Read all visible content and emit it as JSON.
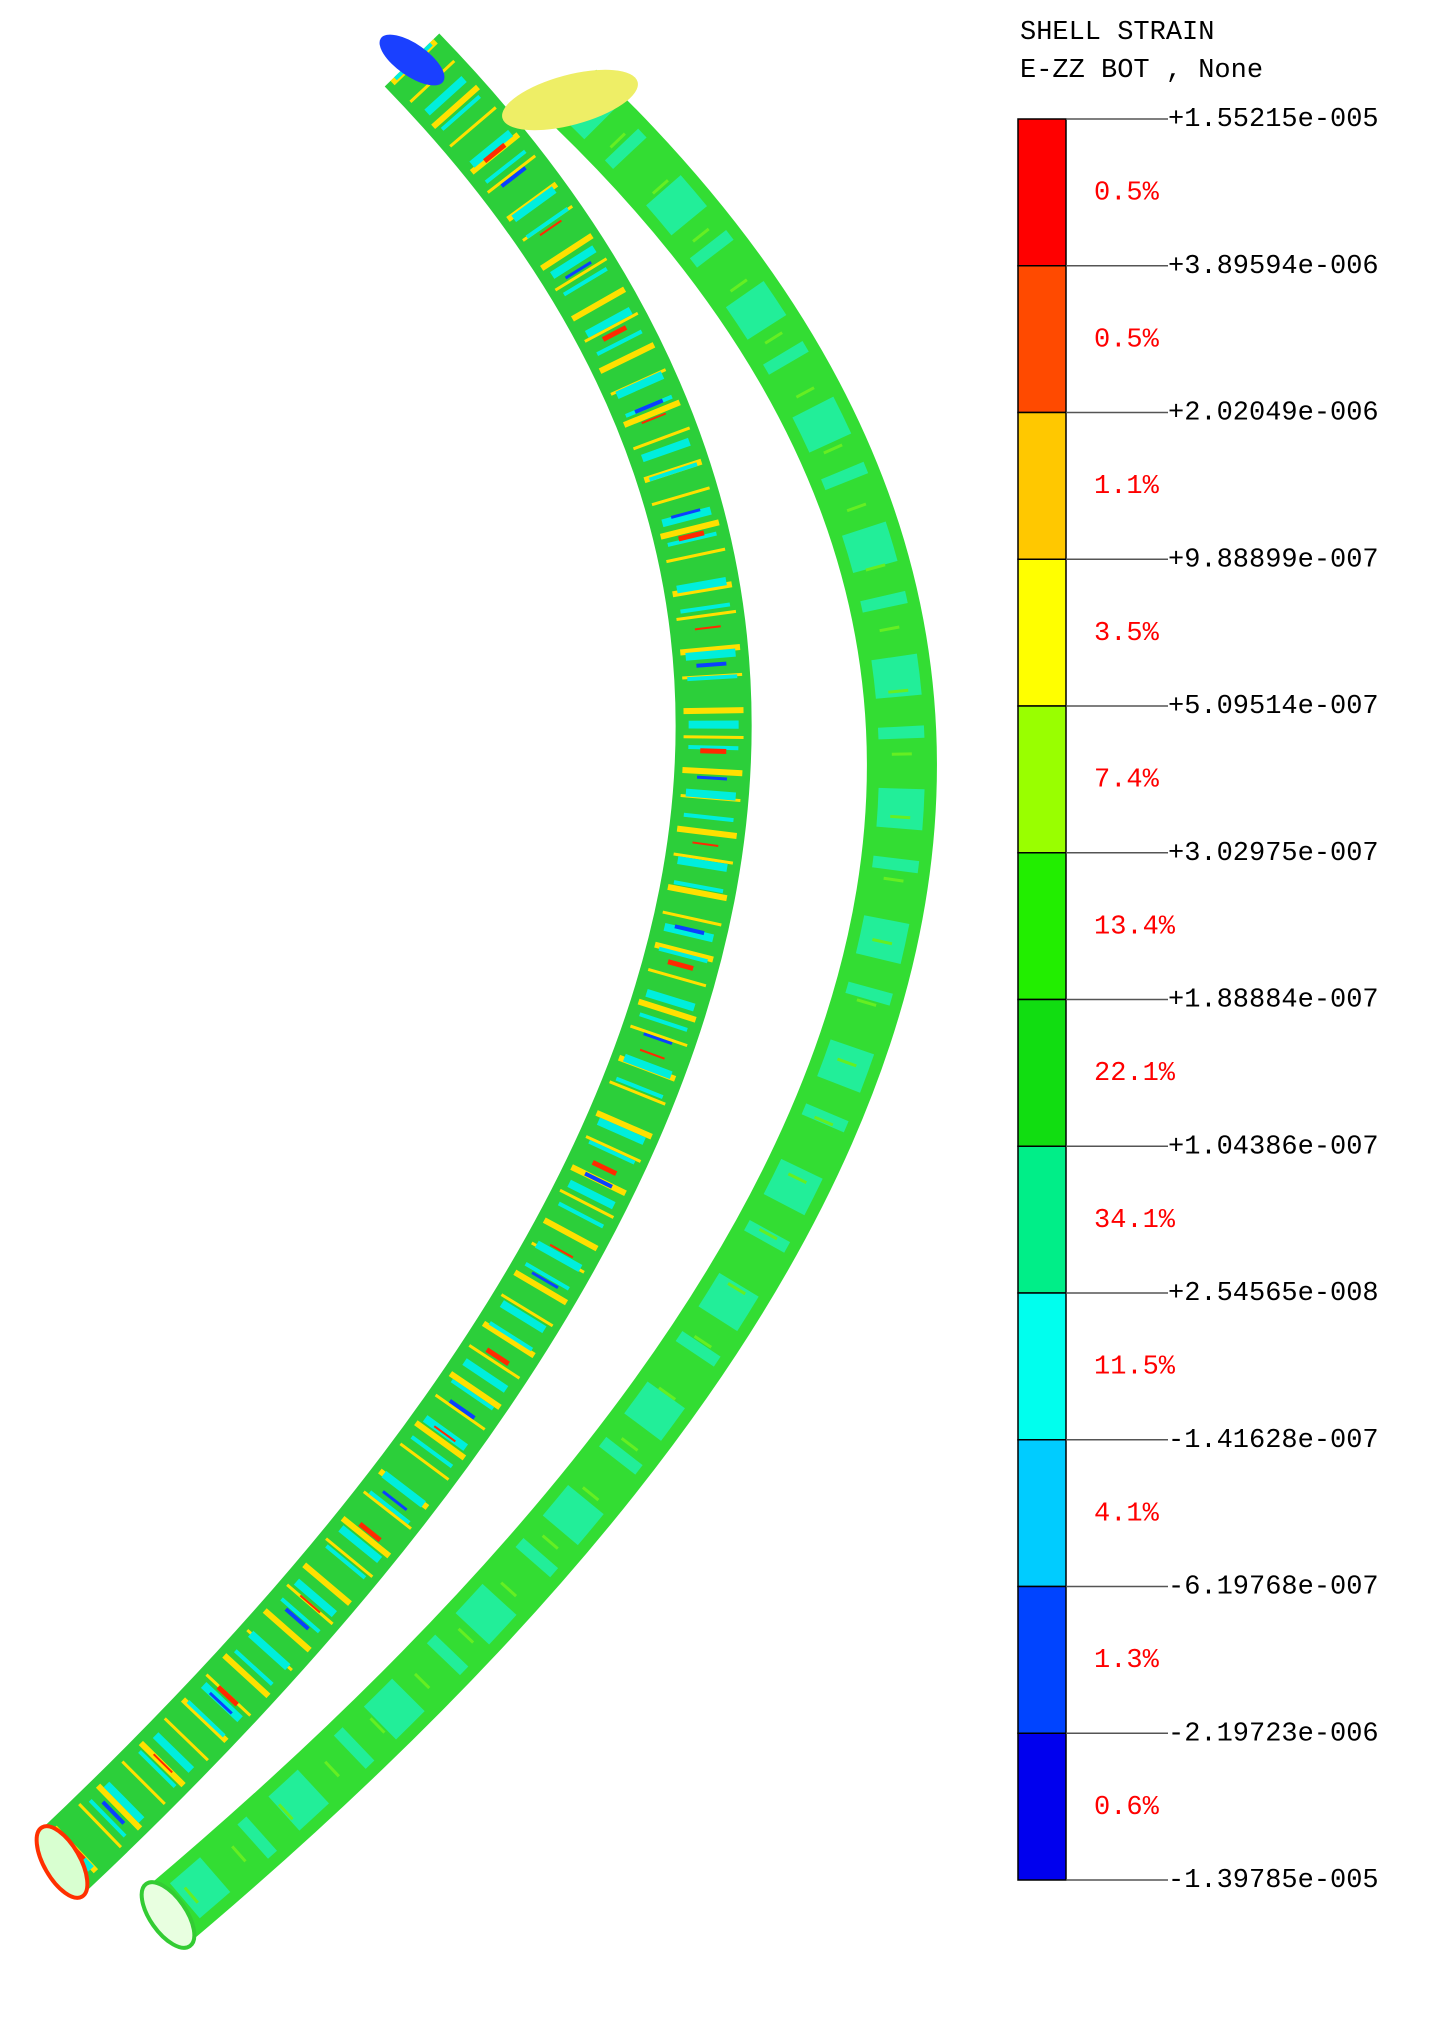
{
  "legend": {
    "title": [
      "SHELL STRAIN",
      "E-ZZ BOT , None"
    ],
    "levels": [
      "+1.55215e-005",
      "+3.89594e-006",
      "+2.02049e-006",
      "+9.88899e-007",
      "+5.09514e-007",
      "+3.02975e-007",
      "+1.88884e-007",
      "+1.04386e-007",
      "+2.54565e-008",
      "-1.41628e-007",
      "-6.19768e-007",
      "-2.19723e-006",
      "-1.39785e-005"
    ],
    "bands": [
      {
        "color": "#ff0000",
        "percent": "0.5%"
      },
      {
        "color": "#ff4a00",
        "percent": "0.5%"
      },
      {
        "color": "#ffc800",
        "percent": "1.1%"
      },
      {
        "color": "#ffff00",
        "percent": "3.5%"
      },
      {
        "color": "#99ff00",
        "percent": "7.4%"
      },
      {
        "color": "#22ee00",
        "percent": "13.4%"
      },
      {
        "color": "#11dd11",
        "percent": "22.1%"
      },
      {
        "color": "#00ee88",
        "percent": "34.1%"
      },
      {
        "color": "#00ffee",
        "percent": "11.5%"
      },
      {
        "color": "#00ccff",
        "percent": "4.1%"
      },
      {
        "color": "#0044ff",
        "percent": "1.3%"
      },
      {
        "color": "#0000ee",
        "percent": "0.6%"
      }
    ]
  }
}
